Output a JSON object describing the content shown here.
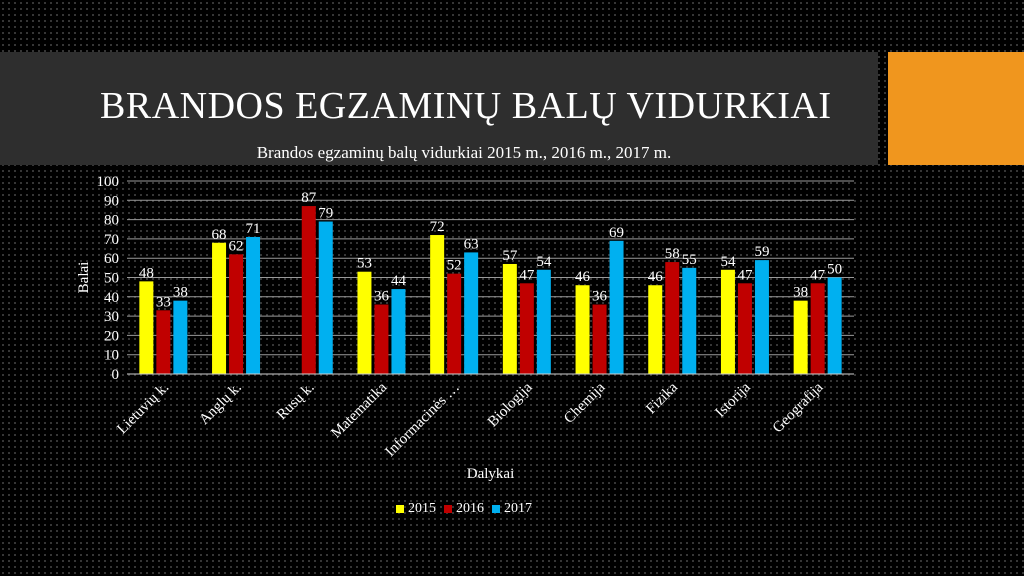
{
  "slide": {
    "title": "BRANDOS EGZAMINŲ BALŲ VIDURKIAI"
  },
  "chart_data": {
    "type": "bar",
    "title": "Brandos egzaminų balų vidurkiai 2015 m., 2016 m., 2017 m.",
    "xlabel": "Dalykai",
    "ylabel": "Balai",
    "ylim": [
      0,
      100
    ],
    "yticks": [
      0,
      10,
      20,
      30,
      40,
      50,
      60,
      70,
      80,
      90,
      100
    ],
    "grid": true,
    "legend_position": "bottom",
    "categories": [
      "Lietuvių k.",
      "Anglų k.",
      "Rusų k.",
      "Matematika",
      "Informacinės …",
      "Biologija",
      "Chemija",
      "Fizika",
      "Istorija",
      "Geografija"
    ],
    "series": [
      {
        "name": "2015",
        "color": "#ffff00",
        "values": [
          48,
          68,
          null,
          53,
          72,
          57,
          46,
          46,
          54,
          38
        ]
      },
      {
        "name": "2016",
        "color": "#c00000",
        "values": [
          33,
          62,
          87,
          36,
          52,
          47,
          36,
          58,
          47,
          47
        ]
      },
      {
        "name": "2017",
        "color": "#00b0f0",
        "values": [
          38,
          71,
          79,
          44,
          63,
          54,
          69,
          55,
          59,
          50
        ]
      }
    ]
  }
}
